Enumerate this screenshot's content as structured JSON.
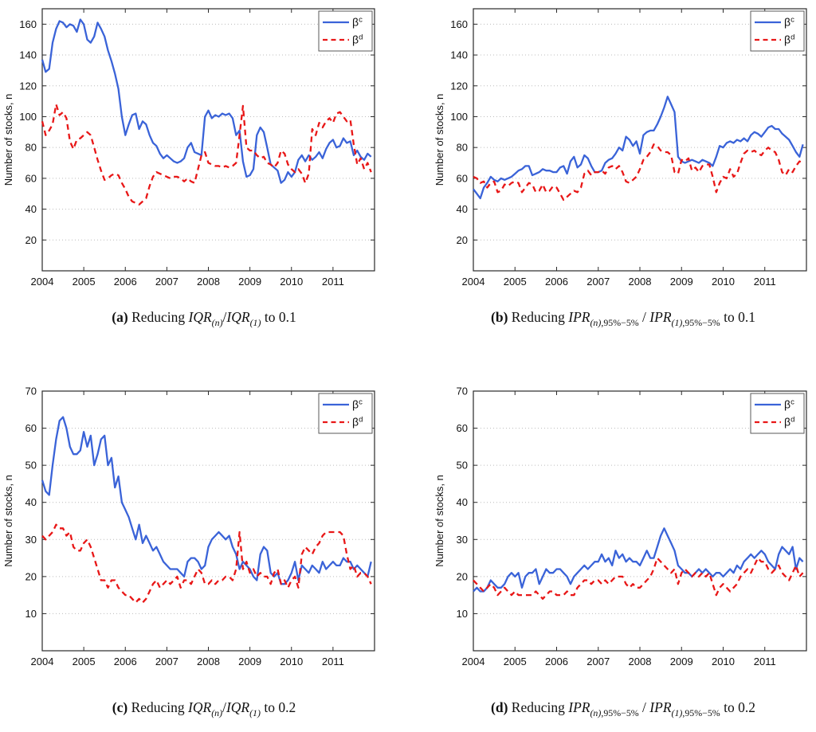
{
  "figure": {
    "ylabel": "Number of stocks, n",
    "colors": {
      "beta_c_blue": "#3a63d8",
      "beta_d_red": "#e81717",
      "grid": "#bcbcbc",
      "frame": "#2a2a2a",
      "text": "#111111",
      "legend_border": "#5a5a5a",
      "background": "#ffffff"
    },
    "legend": {
      "position": "top-right",
      "items": [
        {
          "label_base": "β",
          "label_sup": "c",
          "series": "beta_c"
        },
        {
          "label_base": "β",
          "label_sup": "d",
          "series": "beta_d"
        }
      ]
    }
  },
  "chart_data": [
    {
      "id": "a",
      "type": "line",
      "caption_text": "(a) Reducing IQR(n)/IQR(1) to 0.1",
      "caption_parts": [
        [
          "b",
          "(a)"
        ],
        [
          "r",
          " Reducing "
        ],
        [
          "i",
          "IQR"
        ],
        [
          "si",
          "(n)"
        ],
        [
          "r",
          "/"
        ],
        [
          "i",
          "IQR"
        ],
        [
          "si",
          "(1)"
        ],
        [
          "r",
          " to 0.1"
        ]
      ],
      "ylabel": "Number of stocks, n",
      "ylim": [
        0,
        170
      ],
      "yticks": [
        20,
        40,
        60,
        80,
        100,
        120,
        140,
        160
      ],
      "xlim": [
        2004,
        2012
      ],
      "xticks": [
        2004,
        2005,
        2006,
        2007,
        2008,
        2009,
        2010,
        2011
      ],
      "x_unit": "months since Jan 2004",
      "grid": "horizontal-dotted",
      "legend_position": "top-right",
      "series": [
        {
          "name": "beta_c",
          "label": "βc",
          "style": "solid",
          "color_key": "beta_c_blue",
          "values": [
            137,
            129,
            131,
            148,
            157,
            162,
            161,
            158,
            160,
            159,
            155,
            163,
            160,
            150,
            148,
            152,
            161,
            157,
            152,
            143,
            136,
            128,
            118,
            100,
            88,
            95,
            101,
            102,
            92,
            97,
            95,
            88,
            83,
            81,
            76,
            73,
            75,
            73,
            71,
            70,
            71,
            73,
            80,
            83,
            77,
            76,
            75,
            100,
            104,
            99,
            101,
            100,
            102,
            101,
            102,
            99,
            88,
            91,
            71,
            61,
            62,
            66,
            88,
            93,
            90,
            80,
            69,
            67,
            65,
            57,
            59,
            64,
            61,
            64,
            72,
            75,
            71,
            75,
            72,
            74,
            77,
            73,
            79,
            83,
            85,
            80,
            81,
            86,
            83,
            84,
            75,
            78,
            74,
            72,
            76,
            74
          ]
        },
        {
          "name": "beta_d",
          "label": "βd",
          "style": "dashed",
          "color_key": "beta_d_red",
          "values": [
            97,
            88,
            91,
            95,
            108,
            101,
            103,
            99,
            84,
            79,
            85,
            86,
            88,
            90,
            88,
            80,
            72,
            65,
            59,
            60,
            62,
            63,
            62,
            57,
            53,
            48,
            45,
            44,
            43,
            45,
            47,
            55,
            61,
            64,
            63,
            62,
            61,
            60,
            61,
            61,
            60,
            58,
            60,
            58,
            57,
            66,
            75,
            77,
            70,
            69,
            68,
            68,
            67,
            68,
            67,
            68,
            70,
            88,
            107,
            80,
            78,
            78,
            75,
            73,
            74,
            70,
            69,
            67,
            70,
            78,
            76,
            69,
            66,
            64,
            66,
            63,
            57,
            63,
            92,
            88,
            96,
            93,
            97,
            99,
            96,
            102,
            103,
            100,
            97,
            98,
            82,
            69,
            73,
            66,
            70,
            64
          ]
        }
      ]
    },
    {
      "id": "b",
      "type": "line",
      "caption_text": "(b) Reducing IPR(n),95%−5%/IPR(1),95%−5% to 0.1",
      "caption_parts": [
        [
          "b",
          "(b)"
        ],
        [
          "r",
          " Reducing "
        ],
        [
          "i",
          "IPR"
        ],
        [
          "si",
          "(n)"
        ],
        [
          "sr",
          ",95%−5%"
        ],
        [
          "r",
          " / "
        ],
        [
          "i",
          "IPR"
        ],
        [
          "si",
          "(1)"
        ],
        [
          "sr",
          ",95%−5%"
        ],
        [
          "r",
          " to 0.1"
        ]
      ],
      "ylabel": "Number of stocks, n",
      "ylim": [
        0,
        170
      ],
      "yticks": [
        20,
        40,
        60,
        80,
        100,
        120,
        140,
        160
      ],
      "xlim": [
        2004,
        2012
      ],
      "xticks": [
        2004,
        2005,
        2006,
        2007,
        2008,
        2009,
        2010,
        2011
      ],
      "x_unit": "months since Jan 2004",
      "grid": "horizontal-dotted",
      "legend_position": "top-right",
      "series": [
        {
          "name": "beta_c",
          "label": "βc",
          "style": "solid",
          "color_key": "beta_c_blue",
          "values": [
            53,
            50,
            47,
            54,
            57,
            61,
            59,
            58,
            60,
            59,
            60,
            61,
            63,
            65,
            66,
            68,
            68,
            62,
            63,
            64,
            66,
            65,
            65,
            64,
            64,
            67,
            68,
            63,
            71,
            74,
            67,
            69,
            75,
            73,
            68,
            64,
            64,
            65,
            70,
            72,
            73,
            76,
            80,
            78,
            87,
            85,
            81,
            84,
            76,
            88,
            90,
            91,
            91,
            95,
            100,
            106,
            113,
            108,
            103,
            74,
            71,
            70,
            71,
            72,
            71,
            70,
            72,
            71,
            70,
            68,
            74,
            81,
            80,
            83,
            84,
            83,
            85,
            84,
            86,
            84,
            88,
            90,
            89,
            87,
            90,
            93,
            94,
            92,
            92,
            89,
            87,
            85,
            81,
            77,
            74,
            82
          ]
        },
        {
          "name": "beta_d",
          "label": "βd",
          "style": "dashed",
          "color_key": "beta_d_red",
          "values": [
            61,
            60,
            57,
            58,
            54,
            57,
            58,
            51,
            52,
            56,
            55,
            57,
            58,
            57,
            51,
            54,
            57,
            56,
            51,
            52,
            56,
            51,
            52,
            55,
            54,
            50,
            46,
            48,
            50,
            52,
            51,
            54,
            63,
            65,
            62,
            64,
            64,
            65,
            63,
            67,
            68,
            66,
            68,
            64,
            58,
            57,
            59,
            61,
            66,
            72,
            74,
            77,
            82,
            81,
            78,
            77,
            77,
            75,
            64,
            63,
            72,
            71,
            73,
            65,
            67,
            64,
            68,
            69,
            69,
            61,
            51,
            57,
            61,
            60,
            66,
            61,
            63,
            70,
            76,
            78,
            77,
            78,
            76,
            75,
            78,
            80,
            78,
            77,
            72,
            64,
            62,
            66,
            64,
            68,
            71,
            70
          ]
        }
      ]
    },
    {
      "id": "c",
      "type": "line",
      "caption_text": "(c) Reducing IQR(n)/IQR(1) to 0.2",
      "caption_parts": [
        [
          "b",
          "(c)"
        ],
        [
          "r",
          " Reducing "
        ],
        [
          "i",
          "IQR"
        ],
        [
          "si",
          "(n)"
        ],
        [
          "r",
          "/"
        ],
        [
          "i",
          "IQR"
        ],
        [
          "si",
          "(1)"
        ],
        [
          "r",
          " to 0.2"
        ]
      ],
      "ylabel": "Number of stocks, n",
      "ylim": [
        0,
        70
      ],
      "yticks": [
        10,
        20,
        30,
        40,
        50,
        60,
        70
      ],
      "xlim": [
        2004,
        2012
      ],
      "xticks": [
        2004,
        2005,
        2006,
        2007,
        2008,
        2009,
        2010,
        2011
      ],
      "x_unit": "months since Jan 2004",
      "grid": "horizontal-dotted",
      "legend_position": "top-right",
      "series": [
        {
          "name": "beta_c",
          "label": "βc",
          "style": "solid",
          "color_key": "beta_c_blue",
          "values": [
            46,
            43,
            42,
            50,
            57,
            62,
            63,
            60,
            55,
            53,
            53,
            54,
            59,
            55,
            58,
            50,
            53,
            57,
            58,
            50,
            52,
            44,
            47,
            40,
            38,
            36,
            33,
            30,
            34,
            29,
            31,
            29,
            27,
            28,
            26,
            24,
            23,
            22,
            22,
            22,
            21,
            20,
            24,
            25,
            25,
            24,
            22,
            23,
            28,
            30,
            31,
            32,
            31,
            30,
            31,
            28,
            26,
            22,
            24,
            23,
            22,
            20,
            19,
            26,
            28,
            27,
            21,
            20,
            21,
            18,
            18,
            19,
            21,
            24,
            19,
            23,
            22,
            21,
            23,
            22,
            21,
            24,
            22,
            23,
            24,
            23,
            23,
            25,
            24,
            24,
            22,
            23,
            22,
            21,
            20,
            24
          ]
        },
        {
          "name": "beta_d",
          "label": "βd",
          "style": "dashed",
          "color_key": "beta_d_red",
          "values": [
            31,
            30,
            31,
            32,
            34,
            33,
            33,
            31,
            32,
            28,
            27,
            27,
            29,
            30,
            28,
            25,
            22,
            19,
            19,
            17,
            19,
            19,
            17,
            16,
            15,
            15,
            14,
            13,
            14,
            13,
            14,
            16,
            18,
            19,
            17,
            18,
            19,
            18,
            19,
            20,
            17,
            19,
            19,
            18,
            20,
            22,
            21,
            18,
            18,
            19,
            18,
            19,
            19,
            20,
            20,
            19,
            22,
            32,
            22,
            24,
            21,
            22,
            20,
            21,
            20,
            20,
            18,
            21,
            22,
            18,
            19,
            17,
            19,
            20,
            17,
            26,
            28,
            27,
            26,
            28,
            29,
            31,
            32,
            32,
            32,
            32,
            32,
            31,
            26,
            22,
            23,
            20,
            21,
            21,
            20,
            18
          ]
        }
      ]
    },
    {
      "id": "d",
      "type": "line",
      "caption_text": "(d) Reducing IPR(n),95%−5%/IPR(1),95%−5% to 0.2",
      "caption_parts": [
        [
          "b",
          "(d)"
        ],
        [
          "r",
          " Reducing "
        ],
        [
          "i",
          "IPR"
        ],
        [
          "si",
          "(n)"
        ],
        [
          "sr",
          ",95%−5%"
        ],
        [
          "r",
          " / "
        ],
        [
          "i",
          "IPR"
        ],
        [
          "si",
          "(1)"
        ],
        [
          "sr",
          ",95%−5%"
        ],
        [
          "r",
          " to 0.2"
        ]
      ],
      "ylabel": "Number of stocks, n",
      "ylim": [
        0,
        70
      ],
      "yticks": [
        10,
        20,
        30,
        40,
        50,
        60,
        70
      ],
      "xlim": [
        2004,
        2012
      ],
      "xticks": [
        2004,
        2005,
        2006,
        2007,
        2008,
        2009,
        2010,
        2011
      ],
      "x_unit": "months since Jan 2004",
      "grid": "horizontal-dotted",
      "legend_position": "top-right",
      "series": [
        {
          "name": "beta_c",
          "label": "βc",
          "style": "solid",
          "color_key": "beta_c_blue",
          "values": [
            16,
            17,
            16,
            16,
            17,
            19,
            18,
            17,
            17,
            18,
            20,
            21,
            20,
            21,
            17,
            20,
            21,
            21,
            22,
            18,
            20,
            22,
            21,
            21,
            22,
            22,
            21,
            20,
            18,
            20,
            21,
            22,
            23,
            22,
            23,
            24,
            24,
            26,
            24,
            25,
            23,
            27,
            25,
            26,
            24,
            25,
            24,
            24,
            23,
            25,
            27,
            25,
            25,
            28,
            31,
            33,
            31,
            29,
            27,
            23,
            22,
            21,
            21,
            20,
            21,
            22,
            21,
            22,
            21,
            20,
            21,
            21,
            20,
            21,
            22,
            21,
            23,
            22,
            24,
            25,
            26,
            25,
            26,
            27,
            26,
            24,
            23,
            22,
            26,
            28,
            27,
            26,
            28,
            22,
            25,
            24
          ]
        },
        {
          "name": "beta_d",
          "label": "βd",
          "style": "dashed",
          "color_key": "beta_d_red",
          "values": [
            19,
            18,
            17,
            16,
            17,
            18,
            17,
            15,
            16,
            17,
            16,
            15,
            16,
            15,
            15,
            15,
            15,
            15,
            16,
            15,
            14,
            15,
            16,
            16,
            15,
            15,
            15,
            16,
            15,
            15,
            17,
            18,
            19,
            19,
            18,
            19,
            19,
            18,
            19,
            18,
            19,
            20,
            20,
            20,
            18,
            17,
            18,
            17,
            17,
            18,
            19,
            20,
            22,
            25,
            24,
            23,
            22,
            21,
            22,
            18,
            21,
            22,
            21,
            20,
            21,
            20,
            21,
            20,
            21,
            18,
            15,
            17,
            18,
            17,
            16,
            17,
            18,
            20,
            21,
            22,
            21,
            23,
            25,
            24,
            24,
            22,
            21,
            22,
            23,
            21,
            20,
            19,
            21,
            23,
            20,
            21
          ]
        }
      ]
    }
  ]
}
